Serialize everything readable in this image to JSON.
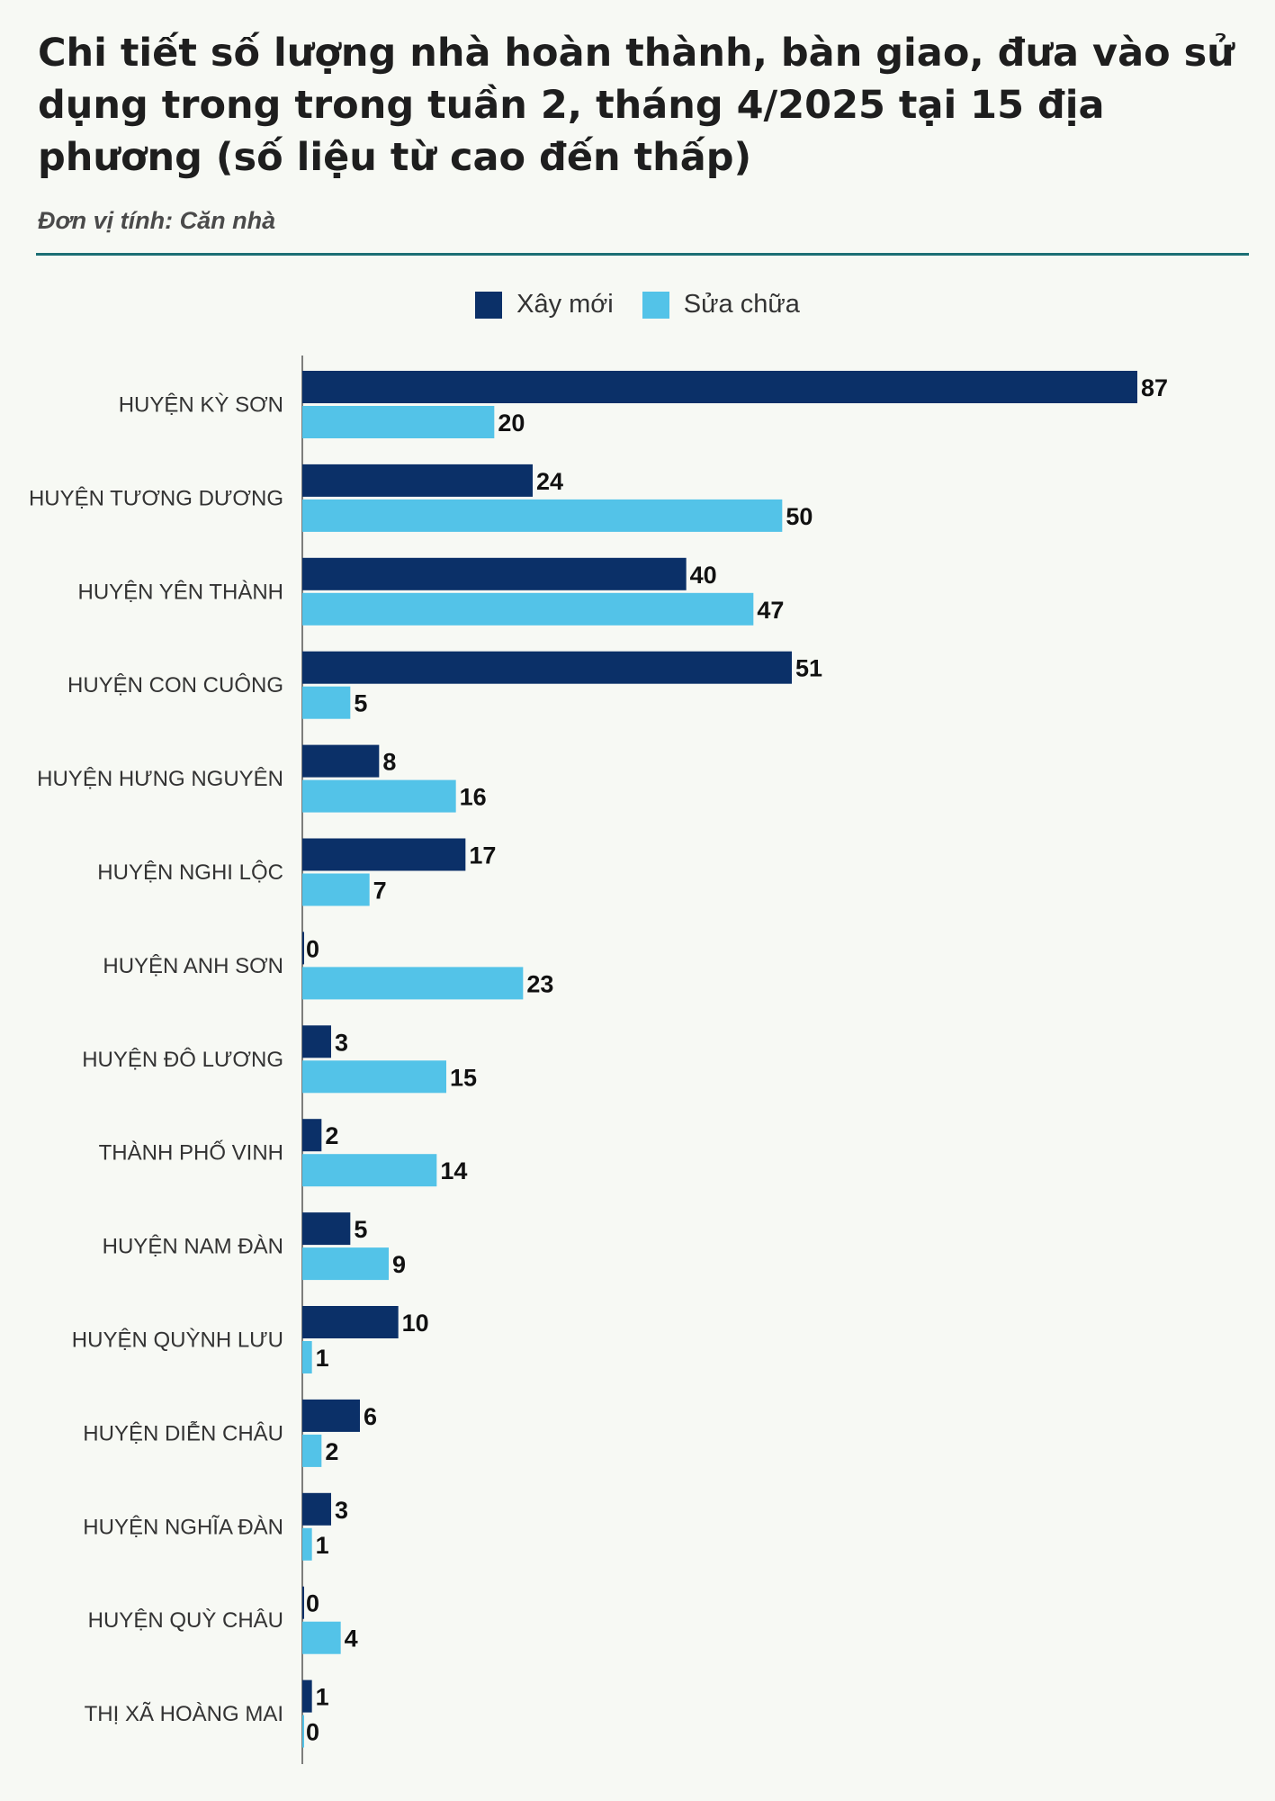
{
  "header": {
    "title": "Chi tiết số lượng nhà hoàn thành, bàn giao, đưa vào sử dụng trong trong tuần 2, tháng 4/2025 tại 15 địa phương (số liệu từ cao đến thấp)",
    "subtitle": "Đơn vị tính: Căn nhà"
  },
  "legend": {
    "items": [
      {
        "label": "Xây mới",
        "color": "#0b3068"
      },
      {
        "label": "Sửa chữa",
        "color": "#53c3e8"
      }
    ]
  },
  "chart_data": {
    "type": "bar",
    "orientation": "horizontal",
    "title": "Chi tiết số lượng nhà hoàn thành, bàn giao, đưa vào sử dụng trong trong tuần 2, tháng 4/2025 tại 15 địa phương (số liệu từ cao đến thấp)",
    "unit": "Đơn vị tính: Căn nhà",
    "categories": [
      "HUYỆN KỲ SƠN",
      "HUYỆN TƯƠNG DƯƠNG",
      "HUYỆN YÊN THÀNH",
      "HUYỆN CON CUÔNG",
      "HUYỆN HƯNG NGUYÊN",
      "HUYỆN NGHI LỘC",
      "HUYỆN ANH SƠN",
      "HUYỆN ĐÔ LƯƠNG",
      "THÀNH PHỐ VINH",
      "HUYỆN NAM ĐÀN",
      "HUYỆN QUỲNH LƯU",
      "HUYỆN DIỄN CHÂU",
      "HUYỆN NGHĨA ĐÀN",
      "HUYỆN QUỲ CHÂU",
      "THỊ XÃ HOÀNG MAI"
    ],
    "series": [
      {
        "name": "Xây mới",
        "color": "#0b3068",
        "values": [
          87,
          24,
          40,
          51,
          8,
          17,
          0,
          3,
          2,
          5,
          10,
          6,
          3,
          0,
          1
        ]
      },
      {
        "name": "Sửa chữa",
        "color": "#53c3e8",
        "values": [
          20,
          50,
          47,
          5,
          16,
          7,
          23,
          15,
          14,
          9,
          1,
          2,
          1,
          4,
          0
        ]
      }
    ],
    "xlim": [
      0,
      87
    ],
    "grid": false,
    "legend_position": "top-center"
  }
}
